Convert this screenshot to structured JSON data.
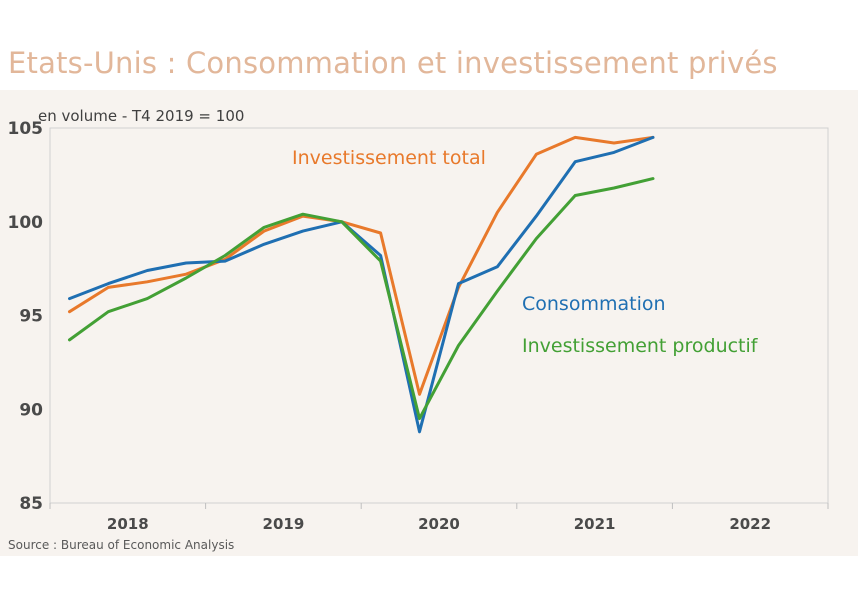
{
  "title": "Etats-Unis : Consommation et investissement privés",
  "subtitle": "en volume - T4 2019 = 100",
  "source": "Source : Bureau of Economic Analysis",
  "colors": {
    "title": "#e2b79a",
    "consommation": "#1f6fb2",
    "investissement_total": "#e8792b",
    "investissement_productif": "#43a035",
    "axis": "#bfbfbf"
  },
  "chart_data": {
    "type": "line",
    "title": "Etats-Unis : Consommation et investissement privés",
    "ylabel": "en volume - T4 2019 = 100",
    "xlabel": "",
    "ylim": [
      85,
      105
    ],
    "yticks": [
      85,
      90,
      95,
      100,
      105
    ],
    "xlim": [
      2017.75,
      2022.75
    ],
    "years": [
      "2018",
      "2019",
      "2020",
      "2021",
      "2022"
    ],
    "x": [
      "2018T1",
      "2018T2",
      "2018T3",
      "2018T4",
      "2019T1",
      "2019T2",
      "2019T3",
      "2019T4",
      "2020T1",
      "2020T2",
      "2020T3",
      "2020T4",
      "2021T1",
      "2021T2",
      "2021T3",
      "2021T4"
    ],
    "series": [
      {
        "name": "Investissement total",
        "key": "investissement_total",
        "values": [
          95.2,
          96.5,
          96.8,
          97.2,
          98.0,
          99.5,
          100.3,
          100.0,
          99.4,
          90.8,
          96.5,
          100.5,
          103.6,
          104.5,
          104.2,
          104.5
        ]
      },
      {
        "name": "Consommation",
        "key": "consommation",
        "values": [
          95.9,
          96.7,
          97.4,
          97.8,
          97.9,
          98.8,
          99.5,
          100.0,
          98.2,
          88.8,
          96.7,
          97.6,
          100.3,
          103.2,
          103.7,
          104.5
        ]
      },
      {
        "name": "Investissement productif",
        "key": "investissement_productif",
        "values": [
          93.7,
          95.2,
          95.9,
          97.0,
          98.2,
          99.7,
          100.4,
          100.0,
          97.9,
          89.5,
          93.4,
          96.3,
          99.1,
          101.4,
          101.8,
          102.3
        ]
      }
    ]
  }
}
